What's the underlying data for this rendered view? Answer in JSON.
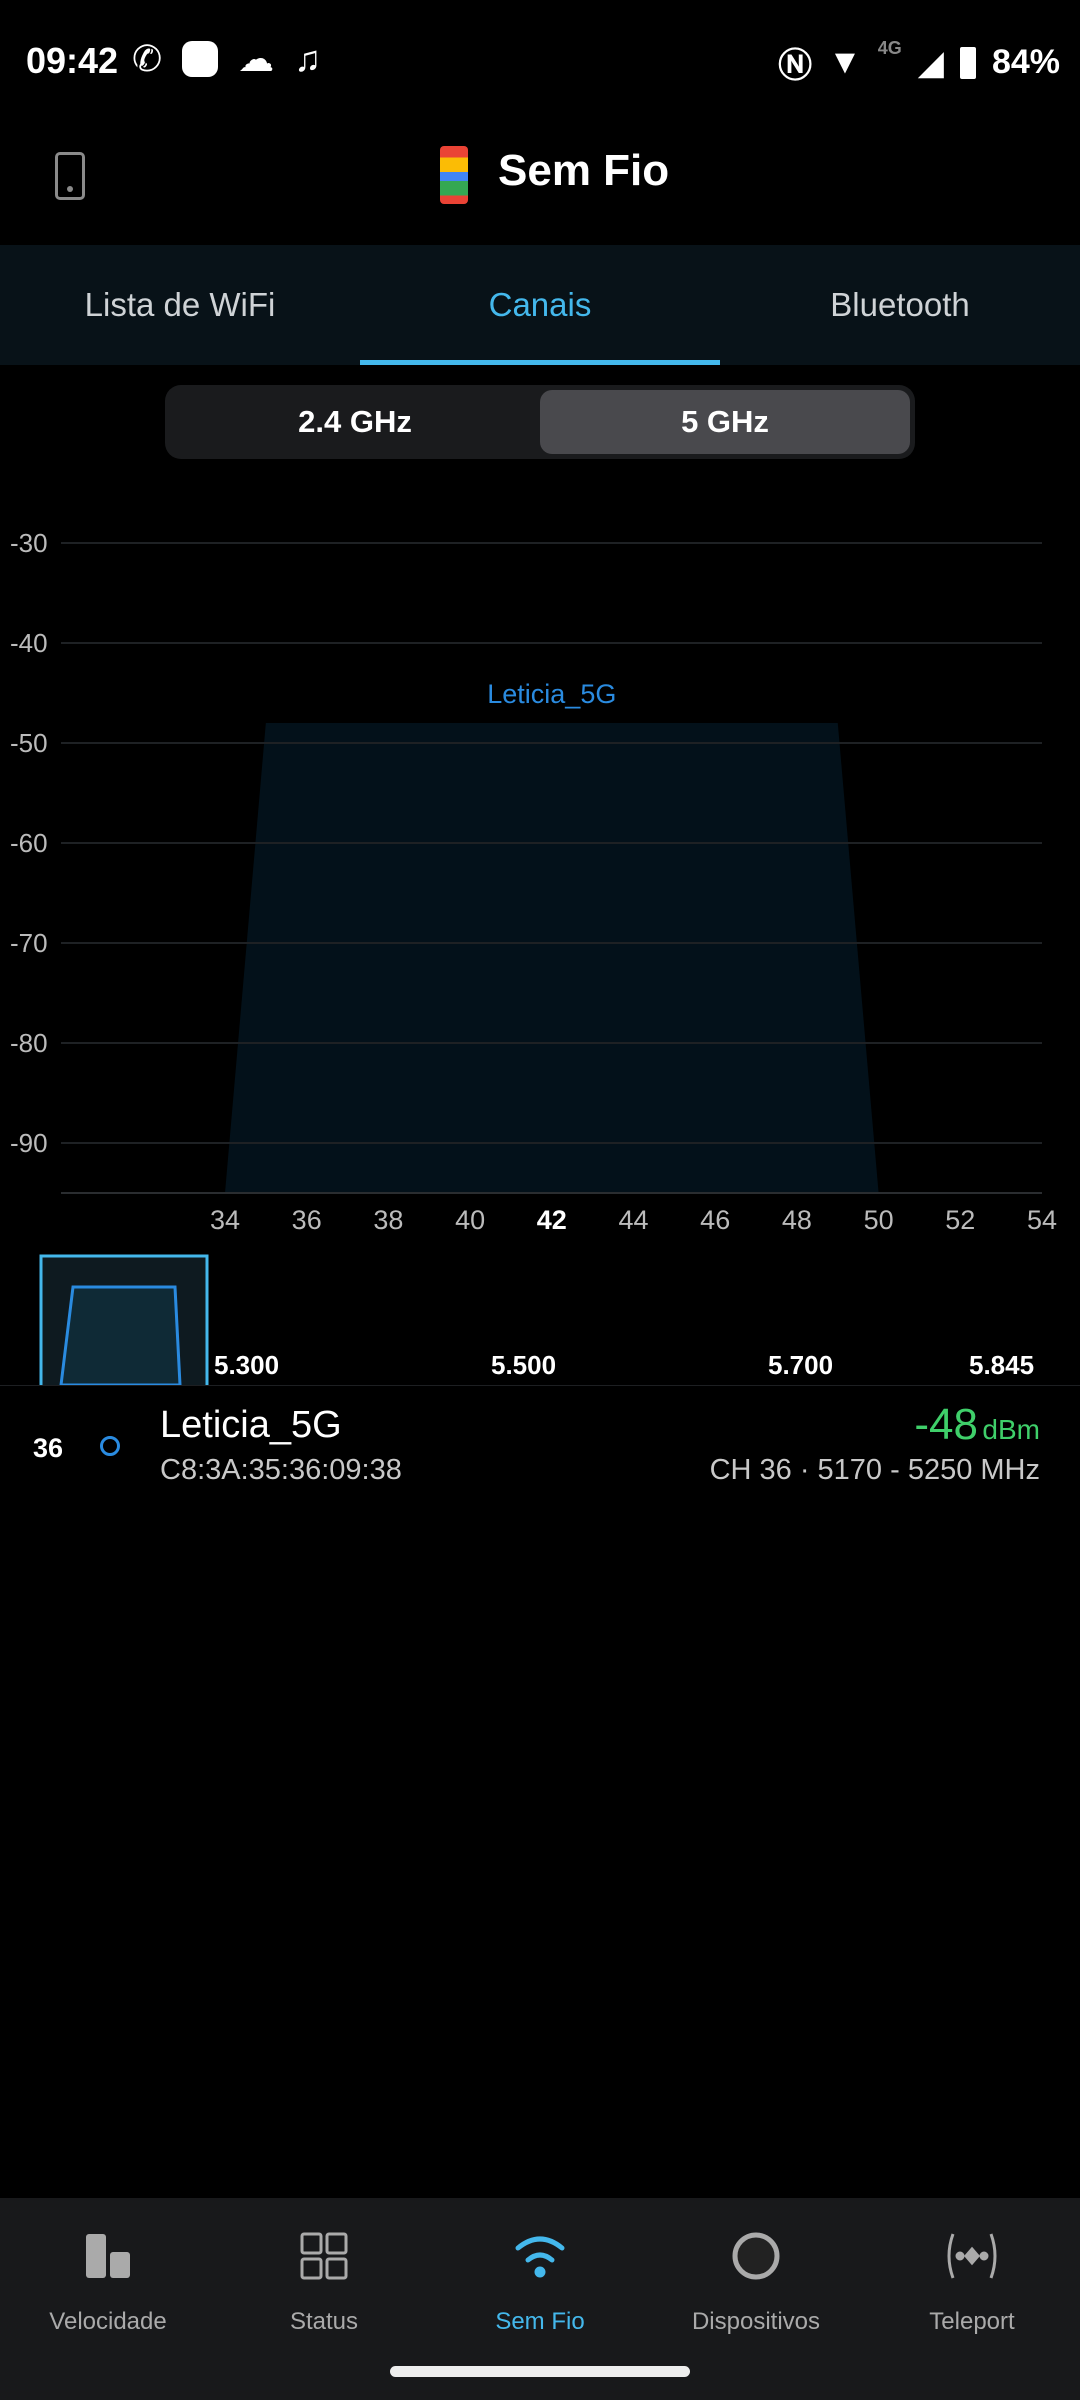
{
  "status_bar": {
    "time": "09:42",
    "network": "4G",
    "battery": "84%"
  },
  "app_bar": {
    "title": "Sem Fio"
  },
  "tabs": [
    {
      "label": "Lista de WiFi",
      "active": false
    },
    {
      "label": "Canais",
      "active": true
    },
    {
      "label": "Bluetooth",
      "active": false
    }
  ],
  "band_toggle": {
    "options": [
      "2.4 GHz",
      "5 GHz"
    ],
    "selected": "5 GHz"
  },
  "chart_data": {
    "type": "area",
    "ylim": [
      -95,
      -30
    ],
    "y_ticks": [
      -30,
      -40,
      -50,
      -60,
      -70,
      -80,
      -90
    ],
    "x_ticks": [
      "34",
      "36",
      "38",
      "40",
      "42",
      "44",
      "46",
      "48",
      "50",
      "52",
      "54"
    ],
    "x_highlight": "42",
    "xlim": [
      34,
      54
    ],
    "grid": true,
    "series": [
      {
        "name": "Leticia_5G",
        "channel_start": 34,
        "channel_end": 50,
        "center": 42,
        "signal_dbm": -48,
        "color": "#2a8be0"
      }
    ]
  },
  "overview": {
    "freq_labels": [
      "5.300",
      "5.500",
      "5.700",
      "5.845"
    ]
  },
  "networks": [
    {
      "channel": "36",
      "ssid": "Leticia_5G",
      "bssid": "C8:3A:35:36:09:38",
      "signal": "-48",
      "unit": "dBm",
      "details": "CH 36 · 5170 - 5250 MHz",
      "signal_color": "#3fcf6a"
    }
  ],
  "bottom_nav": [
    {
      "label": "Velocidade",
      "icon": "bars-icon"
    },
    {
      "label": "Status",
      "icon": "grid-icon"
    },
    {
      "label": "Sem Fio",
      "icon": "wifi-icon",
      "active": true
    },
    {
      "label": "Dispositivos",
      "icon": "circle-icon"
    },
    {
      "label": "Teleport",
      "icon": "teleport-icon"
    }
  ]
}
